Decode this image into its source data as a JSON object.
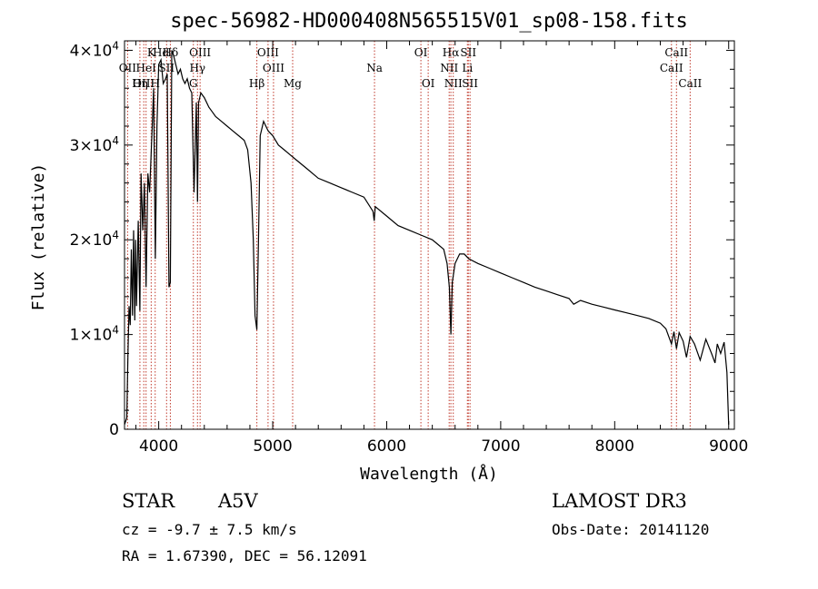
{
  "chart_data": {
    "type": "line",
    "title": "spec-56982-HD000408N565515V01_sp08-158.fits",
    "xlabel": "Wavelength (Å)",
    "ylabel": "Flux (relative)",
    "xlim": [
      3700,
      9050
    ],
    "ylim": [
      0,
      41000
    ],
    "x_ticks": [
      4000,
      5000,
      6000,
      7000,
      8000,
      9000
    ],
    "x_tick_labels": [
      "4000",
      "5000",
      "6000",
      "7000",
      "8000",
      "9000"
    ],
    "y_ticks": [
      0,
      10000,
      20000,
      30000,
      40000
    ],
    "y_tick_labels": [
      {
        "base": "0",
        "exp": ""
      },
      {
        "base": "1×10",
        "exp": "4"
      },
      {
        "base": "2×10",
        "exp": "4"
      },
      {
        "base": "3×10",
        "exp": "4"
      },
      {
        "base": "4×10",
        "exp": "4"
      }
    ],
    "series": [
      {
        "name": "spectrum",
        "x": [
          3700,
          3720,
          3730,
          3740,
          3750,
          3760,
          3770,
          3780,
          3790,
          3797,
          3805,
          3820,
          3835,
          3845,
          3860,
          3875,
          3889,
          3905,
          3920,
          3940,
          3955,
          3970,
          3985,
          4000,
          4020,
          4040,
          4060,
          4075,
          4090,
          4102,
          4115,
          4130,
          4150,
          4170,
          4190,
          4210,
          4230,
          4250,
          4270,
          4290,
          4310,
          4330,
          4340,
          4350,
          4370,
          4400,
          4440,
          4470,
          4500,
          4550,
          4600,
          4650,
          4700,
          4750,
          4780,
          4810,
          4830,
          4845,
          4861,
          4875,
          4890,
          4920,
          4960,
          5000,
          5050,
          5100,
          5150,
          5200,
          5300,
          5400,
          5500,
          5600,
          5700,
          5800,
          5880,
          5890,
          5900,
          6000,
          6100,
          6200,
          6300,
          6400,
          6450,
          6500,
          6530,
          6550,
          6563,
          6575,
          6600,
          6640,
          6680,
          6720,
          6800,
          6900,
          7000,
          7100,
          7200,
          7300,
          7400,
          7500,
          7600,
          7640,
          7700,
          7800,
          7900,
          8000,
          8100,
          8200,
          8300,
          8400,
          8450,
          8498,
          8520,
          8542,
          8565,
          8600,
          8630,
          8662,
          8700,
          8750,
          8800,
          8850,
          8880,
          8900,
          8930,
          8960,
          8985,
          9000
        ],
        "y": [
          500,
          1200,
          8000,
          13000,
          11000,
          19000,
          12000,
          21000,
          11500,
          20000,
          13000,
          22000,
          12500,
          27000,
          21000,
          26000,
          15000,
          27000,
          25000,
          31000,
          36000,
          18000,
          32000,
          38500,
          39000,
          36500,
          37000,
          37500,
          15000,
          15500,
          40000,
          39500,
          38500,
          37500,
          38000,
          37000,
          36500,
          37000,
          36000,
          35500,
          25000,
          34500,
          24000,
          34500,
          35500,
          35000,
          34000,
          33500,
          33000,
          32500,
          32000,
          31500,
          31000,
          30500,
          29500,
          26000,
          20000,
          12000,
          10500,
          20000,
          31000,
          32500,
          31500,
          31000,
          30000,
          29500,
          29000,
          28500,
          27500,
          26500,
          26000,
          25500,
          25000,
          24500,
          23000,
          22000,
          23500,
          22500,
          21500,
          21000,
          20500,
          20000,
          19500,
          19000,
          17500,
          15000,
          10000,
          15500,
          17500,
          18500,
          18500,
          18000,
          17500,
          17000,
          16500,
          16000,
          15500,
          15000,
          14600,
          14200,
          13800,
          13200,
          13600,
          13200,
          12900,
          12600,
          12300,
          12000,
          11700,
          11200,
          10600,
          9000,
          10300,
          8500,
          10200,
          9300,
          7600,
          9800,
          9000,
          7300,
          9500,
          8000,
          7000,
          9000,
          8000,
          9200,
          6000,
          500
        ]
      }
    ],
    "line_ids": [
      {
        "label": "Hδ",
        "wl": 4102,
        "row": 1
      },
      {
        "label": "K",
        "wl": 3934,
        "row": 1
      },
      {
        "label": "Hd",
        "wl": 4020,
        "row": 1
      },
      {
        "label": "OII",
        "wl": 3727,
        "row": 2
      },
      {
        "label": "HeI",
        "wl": 3889,
        "row": 2
      },
      {
        "label": "SII",
        "wl": 4069,
        "row": 2
      },
      {
        "label": "OIII",
        "wl": 3869,
        "row": 3
      },
      {
        "label": "Hη",
        "wl": 3835,
        "row": 3
      },
      {
        "label": "H",
        "wl": 3969,
        "row": 3
      },
      {
        "label": "OIII",
        "wl": 4363,
        "row": 1
      },
      {
        "label": "Hγ",
        "wl": 4340,
        "row": 2
      },
      {
        "label": "G",
        "wl": 4304,
        "row": 3
      },
      {
        "label": "OIII",
        "wl": 4959,
        "row": 1
      },
      {
        "label": "OIII",
        "wl": 5007,
        "row": 2
      },
      {
        "label": "Hβ",
        "wl": 4861,
        "row": 3
      },
      {
        "label": "Mg",
        "wl": 5175,
        "row": 3
      },
      {
        "label": "Na",
        "wl": 5893,
        "row": 2
      },
      {
        "label": "OI",
        "wl": 6300,
        "row": 1
      },
      {
        "label": "OI",
        "wl": 6364,
        "row": 3
      },
      {
        "label": "Hα",
        "wl": 6563,
        "row": 1
      },
      {
        "label": "SII",
        "wl": 6716,
        "row": 1
      },
      {
        "label": "NII",
        "wl": 6548,
        "row": 2
      },
      {
        "label": "Li",
        "wl": 6708,
        "row": 2
      },
      {
        "label": "NII",
        "wl": 6584,
        "row": 3
      },
      {
        "label": "SII",
        "wl": 6731,
        "row": 3
      },
      {
        "label": "CaII",
        "wl": 8542,
        "row": 1
      },
      {
        "label": "CaII",
        "wl": 8498,
        "row": 2
      },
      {
        "label": "CaII",
        "wl": 8662,
        "row": 3
      }
    ],
    "marker_lines": [
      3727,
      3835,
      3869,
      3889,
      3934,
      3969,
      4069,
      4102,
      4304,
      4340,
      4363,
      4861,
      4959,
      5007,
      5175,
      5893,
      6300,
      6364,
      6548,
      6563,
      6584,
      6708,
      6716,
      6731,
      8498,
      8542,
      8662
    ],
    "colors": {
      "spectrum": "#000000",
      "markers": "#c0392b",
      "axes": "#000000"
    }
  },
  "info": {
    "object_class": "STAR",
    "subclass": "A5V",
    "survey": "LAMOST DR3",
    "redshift": "cz = -9.7 ± 7.5 km/s",
    "obs_date": "Obs-Date: 20141120",
    "coords": "RA =   1.67390, DEC =  56.12091"
  }
}
